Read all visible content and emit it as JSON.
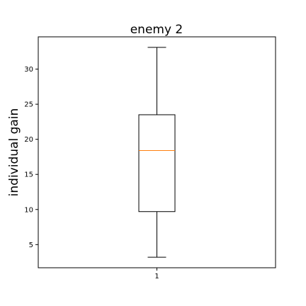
{
  "chart_data": {
    "type": "box",
    "title": "enemy 2",
    "xlabel": "",
    "ylabel": "individual gain",
    "categories": [
      "1"
    ],
    "boxes": [
      {
        "category": "1",
        "whisker_low": 3.2,
        "q1": 9.7,
        "median": 18.4,
        "q3": 23.5,
        "whisker_high": 33.1
      }
    ],
    "ylim": [
      1.7,
      34.6
    ],
    "yticks": [
      5,
      10,
      15,
      20,
      25,
      30
    ],
    "grid": false,
    "colors": {
      "box": "#000000",
      "median": "#ff7f0e"
    }
  }
}
